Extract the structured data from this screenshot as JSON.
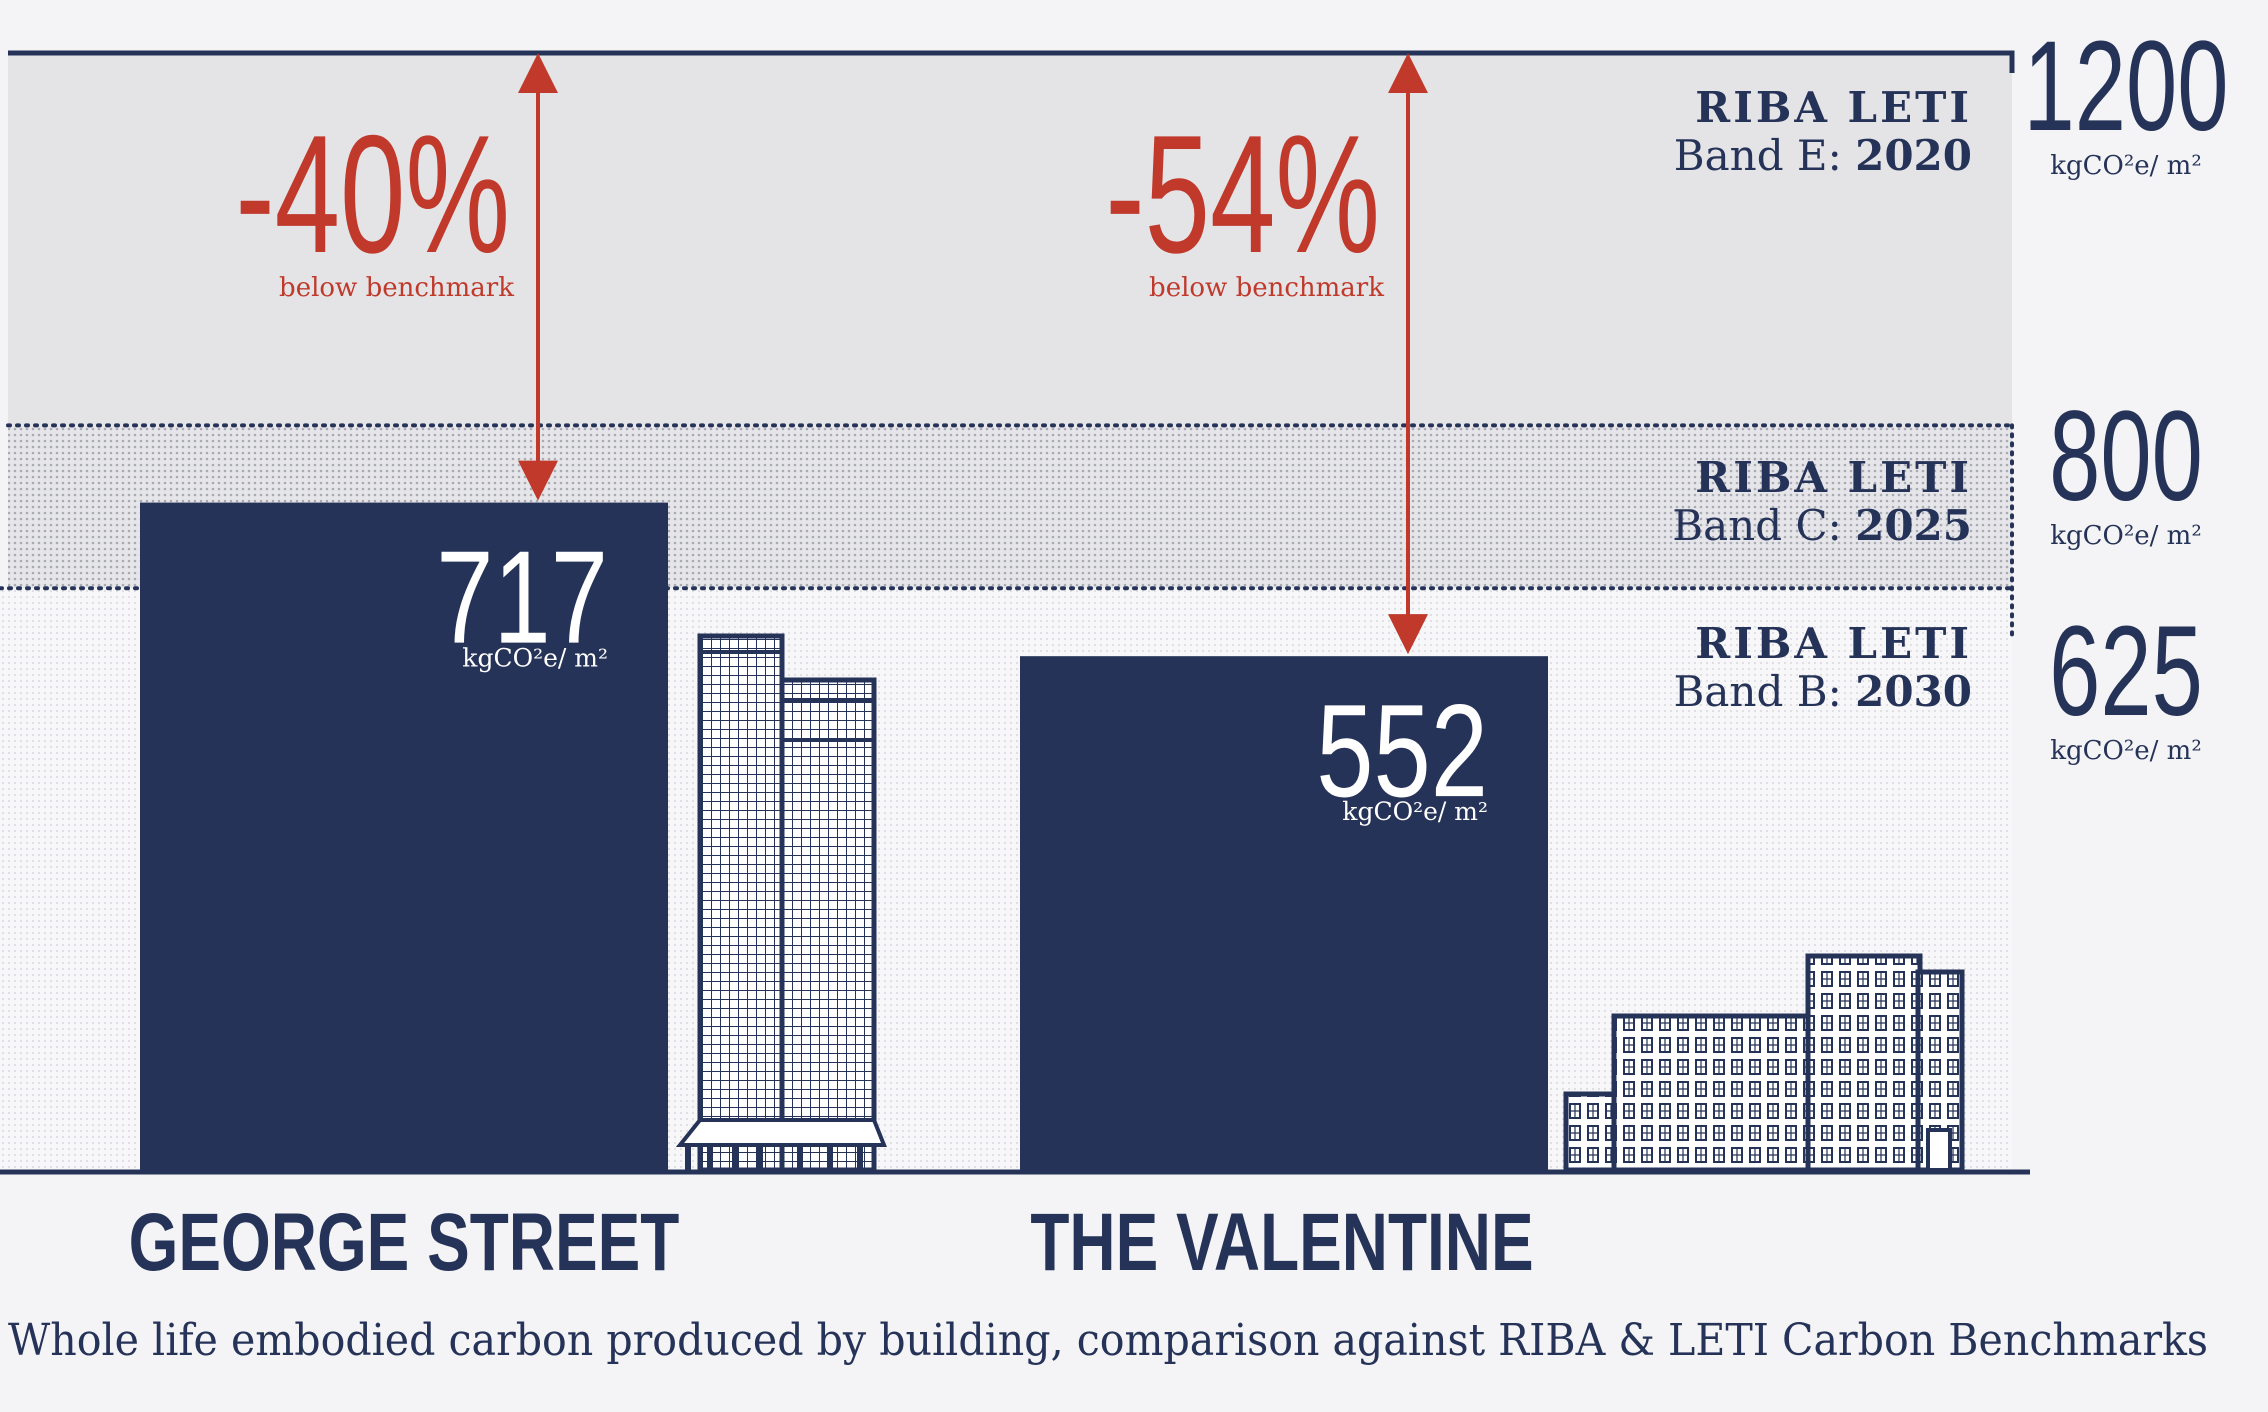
{
  "chart_data": {
    "type": "bar",
    "title": "",
    "caption": "Whole life embodied carbon produced by building, comparison against RIBA & LETI Carbon Benchmarks",
    "categories": [
      "GEORGE STREET",
      "THE VALENTINE"
    ],
    "values": [
      717,
      552
    ],
    "unit": "kgCO²e/ m²",
    "ylim": [
      0,
      1200
    ],
    "bar_color": "#263358",
    "accent_color": "#c0392b",
    "benchmarks": [
      {
        "line1": "RIBA LETI",
        "band": "Band E:",
        "year": "2020",
        "value": 1200,
        "value_label": "1200",
        "unit": "kgCO²e/ m²"
      },
      {
        "line1": "RIBA LETI",
        "band": "Band C:",
        "year": "2025",
        "value": 800,
        "value_label": "800",
        "unit": "kgCO²e/ m²"
      },
      {
        "line1": "RIBA LETI",
        "band": "Band B:",
        "year": "2030",
        "value": 625,
        "value_label": "625",
        "unit": "kgCO²e/ m²"
      }
    ],
    "reductions": [
      {
        "percent": "-40%",
        "note": "below benchmark"
      },
      {
        "percent": "-54%",
        "note": "below benchmark"
      }
    ]
  }
}
